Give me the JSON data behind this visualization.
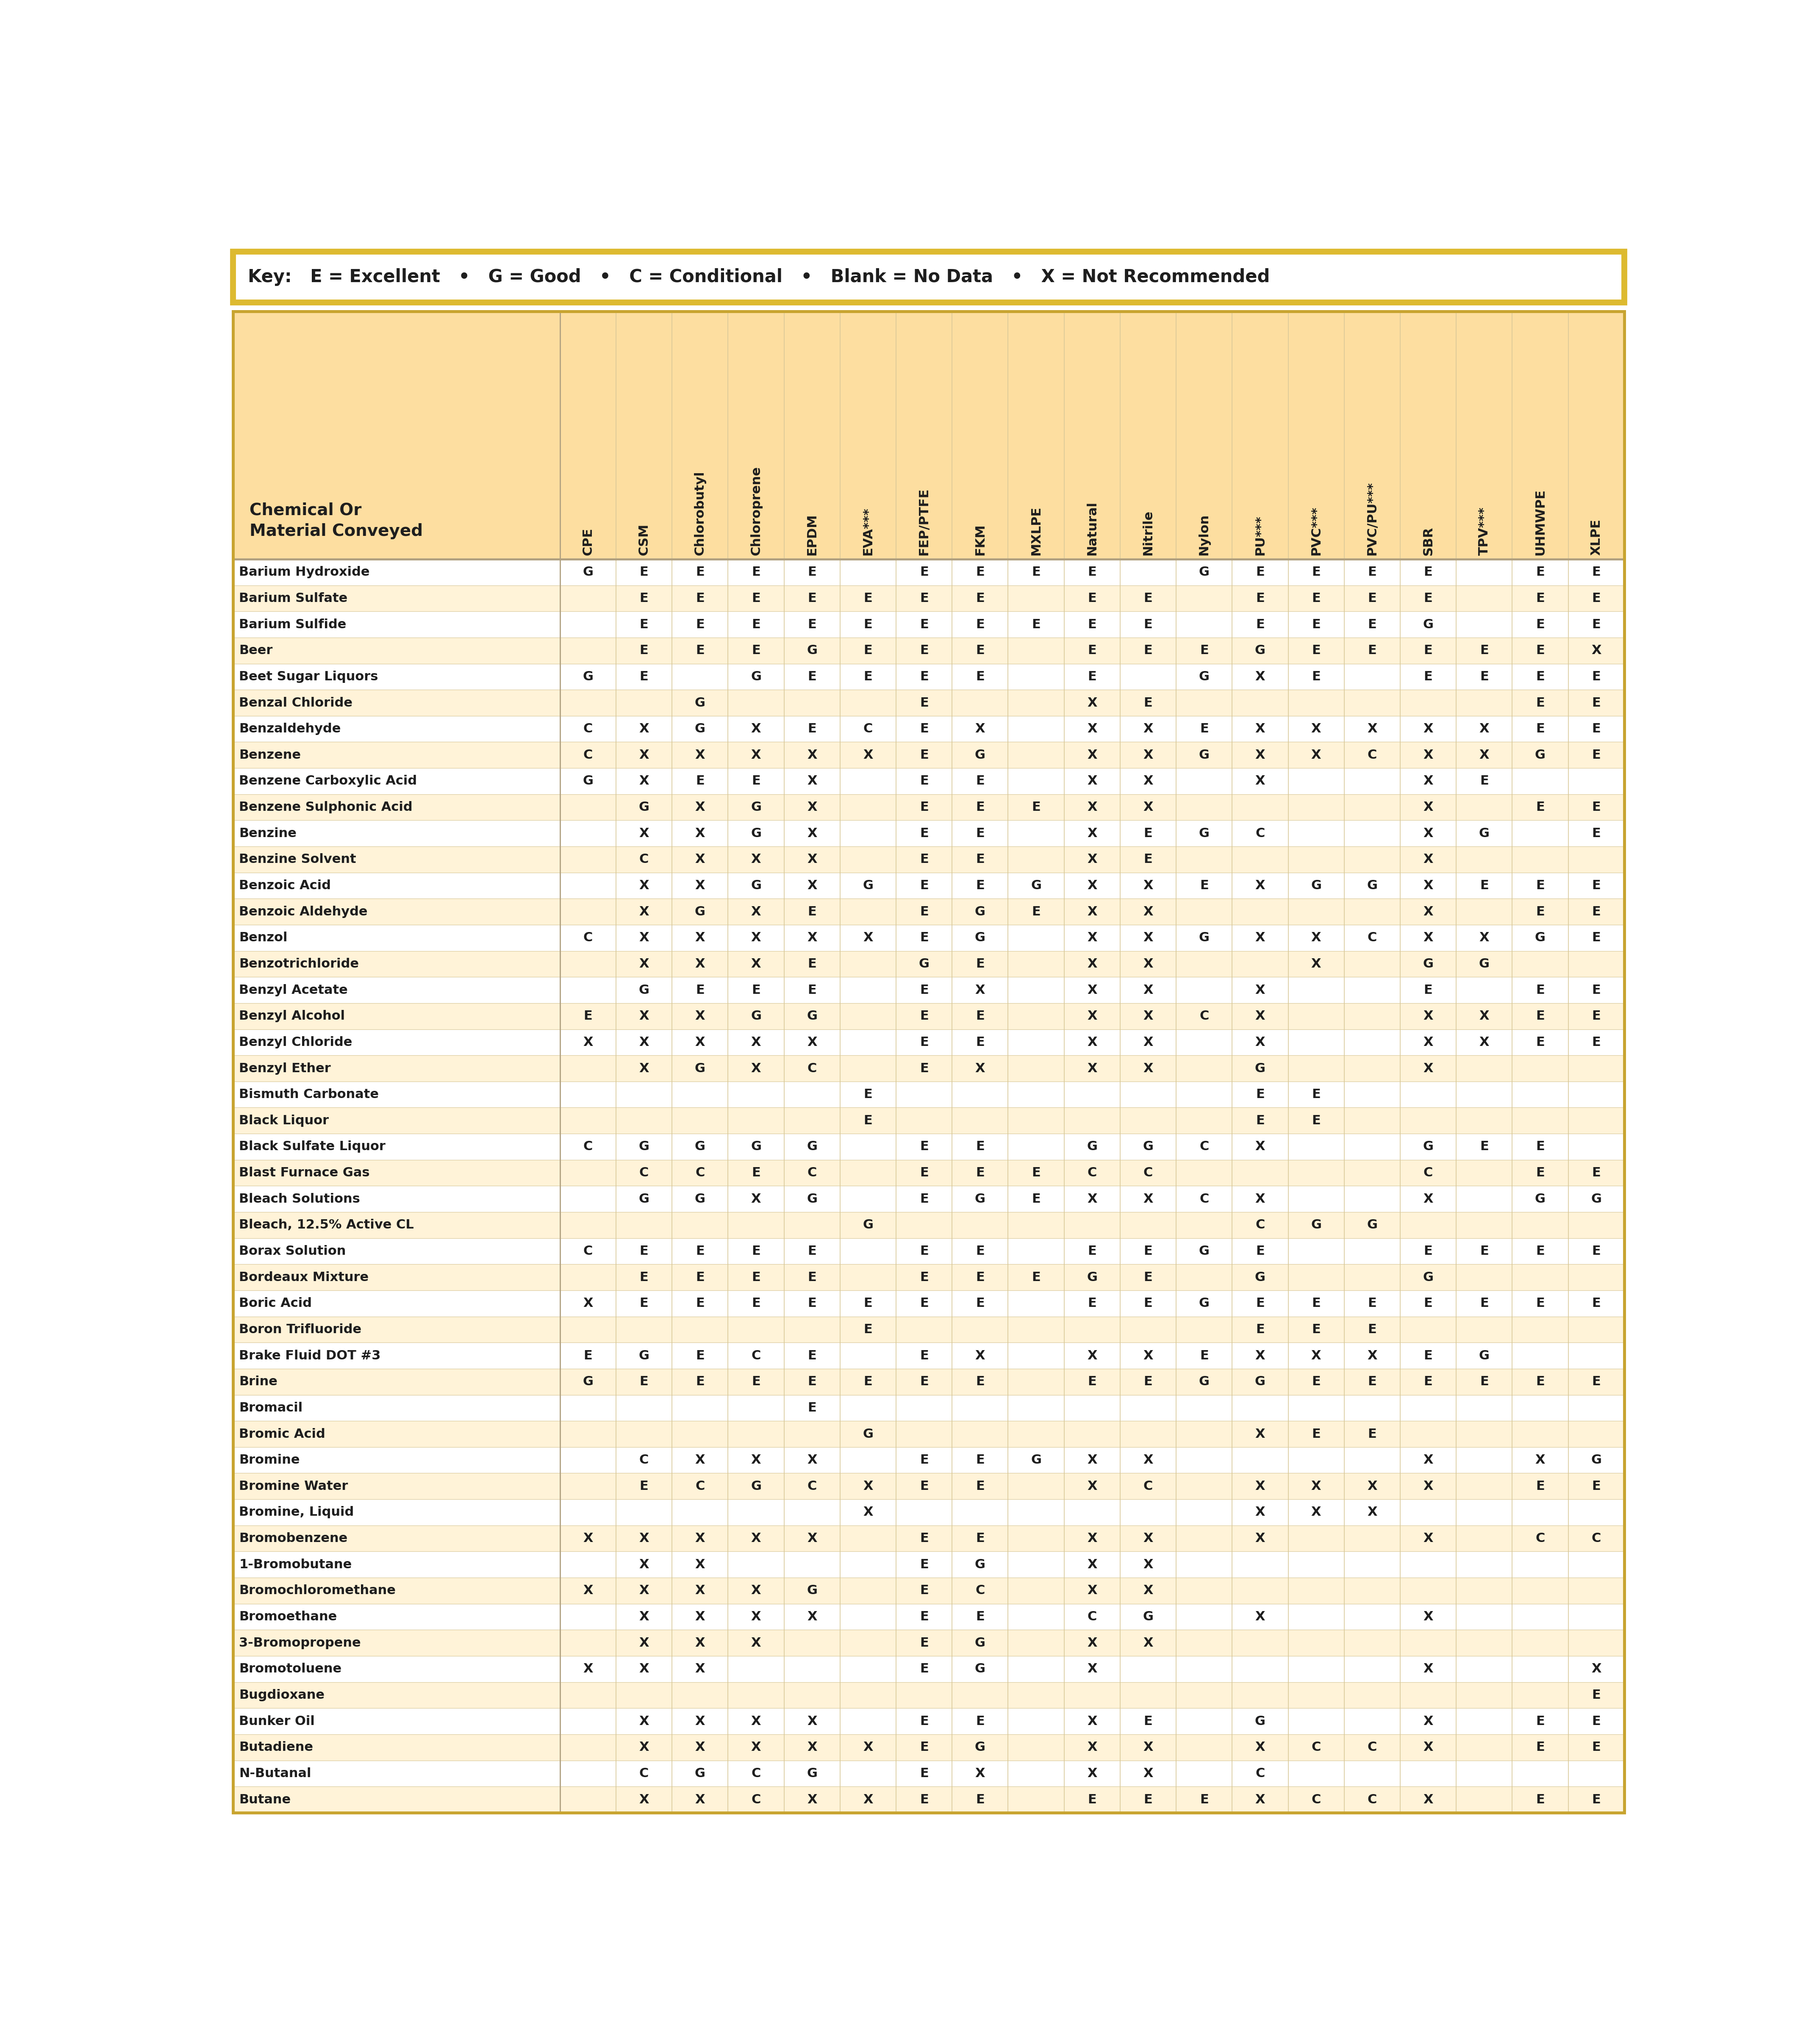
{
  "key_text_parts": [
    [
      "Key:  ",
      true
    ],
    [
      "E = Excellent",
      true
    ],
    [
      "  •  ",
      false
    ],
    [
      "G = Good",
      true
    ],
    [
      "  •  ",
      false
    ],
    [
      "C = Conditional",
      true
    ],
    [
      "  •  ",
      false
    ],
    [
      "Blank = No Data",
      true
    ],
    [
      "  •  ",
      false
    ],
    [
      "X = Not Recommended",
      true
    ]
  ],
  "header_col": "Chemical Or\nMaterial Conveyed",
  "columns": [
    "CPE",
    "CSM",
    "Chlorobutyl",
    "Chloroprene",
    "EPDM",
    "EVA***",
    "FEP/PTFE",
    "FKM",
    "MXLPE",
    "Natural",
    "Nitrile",
    "Nylon",
    "PU***",
    "PVC***",
    "PVC/PU***",
    "SBR",
    "TPV***",
    "UHMWPE",
    "XLPE"
  ],
  "rows": [
    [
      "Barium Hydroxide",
      "G",
      "E",
      "E",
      "E",
      "E",
      "",
      "E",
      "E",
      "E",
      "E",
      "",
      "G",
      "E",
      "E",
      "E",
      "E",
      "",
      "E",
      "E"
    ],
    [
      "Barium Sulfate",
      "",
      "E",
      "E",
      "E",
      "E",
      "E",
      "E",
      "E",
      "",
      "E",
      "E",
      "",
      "E",
      "E",
      "E",
      "E",
      "",
      "E",
      "E"
    ],
    [
      "Barium Sulfide",
      "",
      "E",
      "E",
      "E",
      "E",
      "E",
      "E",
      "E",
      "E",
      "E",
      "E",
      "",
      "E",
      "E",
      "E",
      "G",
      "",
      "E",
      "E"
    ],
    [
      "Beer",
      "",
      "E",
      "E",
      "E",
      "G",
      "E",
      "E",
      "E",
      "",
      "E",
      "E",
      "E",
      "G",
      "E",
      "E",
      "E",
      "E",
      "E",
      "X"
    ],
    [
      "Beet Sugar Liquors",
      "G",
      "E",
      "",
      "G",
      "E",
      "E",
      "E",
      "E",
      "",
      "E",
      "",
      "G",
      "X",
      "E",
      "",
      "E",
      "E",
      "E",
      "E"
    ],
    [
      "Benzal Chloride",
      "",
      "",
      "G",
      "",
      "",
      "",
      "E",
      "",
      "",
      "X",
      "E",
      "",
      "",
      "",
      "",
      "",
      "",
      "E",
      "E"
    ],
    [
      "Benzaldehyde",
      "C",
      "X",
      "G",
      "X",
      "E",
      "C",
      "E",
      "X",
      "",
      "X",
      "X",
      "E",
      "X",
      "X",
      "X",
      "X",
      "X",
      "E",
      "E"
    ],
    [
      "Benzene",
      "C",
      "X",
      "X",
      "X",
      "X",
      "X",
      "E",
      "G",
      "",
      "X",
      "X",
      "G",
      "X",
      "X",
      "C",
      "X",
      "X",
      "G",
      "E"
    ],
    [
      "Benzene Carboxylic Acid",
      "G",
      "X",
      "E",
      "E",
      "X",
      "",
      "E",
      "E",
      "",
      "X",
      "X",
      "",
      "X",
      "",
      "",
      "X",
      "E",
      "",
      ""
    ],
    [
      "Benzene Sulphonic Acid",
      "",
      "G",
      "X",
      "G",
      "X",
      "",
      "E",
      "E",
      "E",
      "X",
      "X",
      "",
      "",
      "",
      "",
      "X",
      "",
      "E",
      "E"
    ],
    [
      "Benzine",
      "",
      "X",
      "X",
      "G",
      "X",
      "",
      "E",
      "E",
      "",
      "X",
      "E",
      "G",
      "C",
      "",
      "",
      "X",
      "G",
      "",
      "E"
    ],
    [
      "Benzine Solvent",
      "",
      "C",
      "X",
      "X",
      "X",
      "",
      "E",
      "E",
      "",
      "X",
      "E",
      "",
      "",
      "",
      "",
      "X",
      "",
      "",
      ""
    ],
    [
      "Benzoic Acid",
      "",
      "X",
      "X",
      "G",
      "X",
      "G",
      "E",
      "E",
      "G",
      "X",
      "X",
      "E",
      "X",
      "G",
      "G",
      "X",
      "E",
      "E",
      "E"
    ],
    [
      "Benzoic Aldehyde",
      "",
      "X",
      "G",
      "X",
      "E",
      "",
      "E",
      "G",
      "E",
      "X",
      "X",
      "",
      "",
      "",
      "",
      "X",
      "",
      "E",
      "E"
    ],
    [
      "Benzol",
      "C",
      "X",
      "X",
      "X",
      "X",
      "X",
      "E",
      "G",
      "",
      "X",
      "X",
      "G",
      "X",
      "X",
      "C",
      "X",
      "X",
      "G",
      "E"
    ],
    [
      "Benzotrichloride",
      "",
      "X",
      "X",
      "X",
      "E",
      "",
      "G",
      "E",
      "",
      "X",
      "X",
      "",
      "",
      "X",
      "",
      "G",
      "G",
      "",
      ""
    ],
    [
      "Benzyl Acetate",
      "",
      "G",
      "E",
      "E",
      "E",
      "",
      "E",
      "X",
      "",
      "X",
      "X",
      "",
      "X",
      "",
      "",
      "E",
      "",
      "E",
      "E"
    ],
    [
      "Benzyl Alcohol",
      "E",
      "X",
      "X",
      "G",
      "G",
      "",
      "E",
      "E",
      "",
      "X",
      "X",
      "C",
      "X",
      "",
      "",
      "X",
      "X",
      "E",
      "E"
    ],
    [
      "Benzyl Chloride",
      "X",
      "X",
      "X",
      "X",
      "X",
      "",
      "E",
      "E",
      "",
      "X",
      "X",
      "",
      "X",
      "",
      "",
      "X",
      "X",
      "E",
      "E"
    ],
    [
      "Benzyl Ether",
      "",
      "X",
      "G",
      "X",
      "C",
      "",
      "E",
      "X",
      "",
      "X",
      "X",
      "",
      "G",
      "",
      "",
      "X",
      "",
      "",
      ""
    ],
    [
      "Bismuth Carbonate",
      "",
      "",
      "",
      "",
      "",
      "E",
      "",
      "",
      "",
      "",
      "",
      "",
      "E",
      "E",
      "",
      "",
      "",
      "",
      ""
    ],
    [
      "Black Liquor",
      "",
      "",
      "",
      "",
      "",
      "E",
      "",
      "",
      "",
      "",
      "",
      "",
      "E",
      "E",
      "",
      "",
      "",
      "",
      ""
    ],
    [
      "Black Sulfate Liquor",
      "C",
      "G",
      "G",
      "G",
      "G",
      "",
      "E",
      "E",
      "",
      "G",
      "G",
      "C",
      "X",
      "",
      "",
      "G",
      "E",
      "E",
      ""
    ],
    [
      "Blast Furnace Gas",
      "",
      "C",
      "C",
      "E",
      "C",
      "",
      "E",
      "E",
      "E",
      "C",
      "C",
      "",
      "",
      "",
      "",
      "C",
      "",
      "E",
      "E"
    ],
    [
      "Bleach Solutions",
      "",
      "G",
      "G",
      "X",
      "G",
      "",
      "E",
      "G",
      "E",
      "X",
      "X",
      "C",
      "X",
      "",
      "",
      "X",
      "",
      "G",
      "G"
    ],
    [
      "Bleach, 12.5% Active CL",
      "",
      "",
      "",
      "",
      "",
      "G",
      "",
      "",
      "",
      "",
      "",
      "",
      "C",
      "G",
      "G",
      "",
      "",
      "",
      ""
    ],
    [
      "Borax Solution",
      "C",
      "E",
      "E",
      "E",
      "E",
      "",
      "E",
      "E",
      "",
      "E",
      "E",
      "G",
      "E",
      "",
      "",
      "E",
      "E",
      "E",
      "E"
    ],
    [
      "Bordeaux Mixture",
      "",
      "E",
      "E",
      "E",
      "E",
      "",
      "E",
      "E",
      "E",
      "G",
      "E",
      "",
      "G",
      "",
      "",
      "G",
      "",
      "",
      ""
    ],
    [
      "Boric Acid",
      "X",
      "E",
      "E",
      "E",
      "E",
      "E",
      "E",
      "E",
      "",
      "E",
      "E",
      "G",
      "E",
      "E",
      "E",
      "E",
      "E",
      "E",
      "E"
    ],
    [
      "Boron Trifluoride",
      "",
      "",
      "",
      "",
      "",
      "E",
      "",
      "",
      "",
      "",
      "",
      "",
      "E",
      "E",
      "E",
      "",
      "",
      "",
      ""
    ],
    [
      "Brake Fluid DOT #3",
      "E",
      "G",
      "E",
      "C",
      "E",
      "",
      "E",
      "X",
      "",
      "X",
      "X",
      "E",
      "X",
      "X",
      "X",
      "E",
      "G",
      "",
      ""
    ],
    [
      "Brine",
      "G",
      "E",
      "E",
      "E",
      "E",
      "E",
      "E",
      "E",
      "",
      "E",
      "E",
      "G",
      "G",
      "E",
      "E",
      "E",
      "E",
      "E",
      "E"
    ],
    [
      "Bromacil",
      "",
      "",
      "",
      "",
      "E",
      "",
      "",
      "",
      "",
      "",
      "",
      "",
      "",
      "",
      "",
      "",
      "",
      "",
      ""
    ],
    [
      "Bromic Acid",
      "",
      "",
      "",
      "",
      "",
      "G",
      "",
      "",
      "",
      "",
      "",
      "",
      "X",
      "E",
      "E",
      "",
      "",
      "",
      ""
    ],
    [
      "Bromine",
      "",
      "C",
      "X",
      "X",
      "X",
      "",
      "E",
      "E",
      "G",
      "X",
      "X",
      "",
      "",
      "",
      "",
      "X",
      "",
      "X",
      "G"
    ],
    [
      "Bromine Water",
      "",
      "E",
      "C",
      "G",
      "C",
      "X",
      "E",
      "E",
      "",
      "X",
      "C",
      "",
      "X",
      "X",
      "X",
      "X",
      "",
      "E",
      "E"
    ],
    [
      "Bromine, Liquid",
      "",
      "",
      "",
      "",
      "",
      "X",
      "",
      "",
      "",
      "",
      "",
      "",
      "X",
      "X",
      "X",
      "",
      "",
      "",
      ""
    ],
    [
      "Bromobenzene",
      "X",
      "X",
      "X",
      "X",
      "X",
      "",
      "E",
      "E",
      "",
      "X",
      "X",
      "",
      "X",
      "",
      "",
      "X",
      "",
      "C",
      "C"
    ],
    [
      "1-Bromobutane",
      "",
      "X",
      "X",
      "",
      "",
      "",
      "E",
      "G",
      "",
      "X",
      "X",
      "",
      "",
      "",
      "",
      "",
      "",
      "",
      ""
    ],
    [
      "Bromochloromethane",
      "X",
      "X",
      "X",
      "X",
      "G",
      "",
      "E",
      "C",
      "",
      "X",
      "X",
      "",
      "",
      "",
      "",
      "",
      "",
      "",
      ""
    ],
    [
      "Bromoethane",
      "",
      "X",
      "X",
      "X",
      "X",
      "",
      "E",
      "E",
      "",
      "C",
      "G",
      "",
      "X",
      "",
      "",
      "X",
      "",
      "",
      ""
    ],
    [
      "3-Bromopropene",
      "",
      "X",
      "X",
      "X",
      "",
      "",
      "E",
      "G",
      "",
      "X",
      "X",
      "",
      "",
      "",
      "",
      "",
      "",
      "",
      ""
    ],
    [
      "Bromotoluene",
      "X",
      "X",
      "X",
      "",
      "",
      "",
      "E",
      "G",
      "",
      "X",
      "",
      "",
      "",
      "",
      "",
      "X",
      "",
      "",
      "X"
    ],
    [
      "Bugdioxane",
      "",
      "",
      "",
      "",
      "",
      "",
      "",
      "",
      "",
      "",
      "",
      "",
      "",
      "",
      "",
      "",
      "",
      "",
      "E"
    ],
    [
      "Bunker Oil",
      "",
      "X",
      "X",
      "X",
      "X",
      "",
      "E",
      "E",
      "",
      "X",
      "E",
      "",
      "G",
      "",
      "",
      "X",
      "",
      "E",
      "E"
    ],
    [
      "Butadiene",
      "",
      "X",
      "X",
      "X",
      "X",
      "X",
      "E",
      "G",
      "",
      "X",
      "X",
      "",
      "X",
      "C",
      "C",
      "X",
      "",
      "E",
      "E"
    ],
    [
      "N-Butanal",
      "",
      "C",
      "G",
      "C",
      "G",
      "",
      "E",
      "X",
      "",
      "X",
      "X",
      "",
      "C",
      "",
      "",
      "",
      "",
      "",
      ""
    ],
    [
      "Butane",
      "",
      "X",
      "X",
      "C",
      "X",
      "X",
      "E",
      "E",
      "",
      "E",
      "E",
      "E",
      "X",
      "C",
      "C",
      "X",
      "",
      "E",
      "E"
    ]
  ],
  "bg_color_header": "#FDDEA0",
  "bg_color_odd": "#FFFFFF",
  "bg_color_even": "#FFF3D8",
  "border_color_outer": "#C8A430",
  "border_color_table": "#B0A080",
  "border_color_cell": "#D8C898",
  "text_color": "#1E1E1E",
  "key_bg": "#FFFFFF",
  "key_border": "#DDBA30",
  "key_fontsize": 30,
  "header_fontsize": 28,
  "col_header_fontsize": 22,
  "data_fontsize": 22,
  "chem_fontsize": 22
}
